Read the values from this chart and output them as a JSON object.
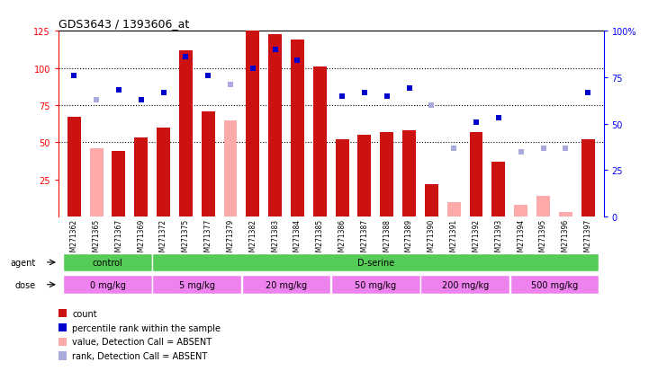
{
  "title": "GDS3643 / 1393606_at",
  "samples": [
    "GSM271362",
    "GSM271365",
    "GSM271367",
    "GSM271369",
    "GSM271372",
    "GSM271375",
    "GSM271377",
    "GSM271379",
    "GSM271382",
    "GSM271383",
    "GSM271384",
    "GSM271385",
    "GSM271386",
    "GSM271387",
    "GSM271388",
    "GSM271389",
    "GSM271390",
    "GSM271391",
    "GSM271392",
    "GSM271393",
    "GSM271394",
    "GSM271395",
    "GSM271396",
    "GSM271397"
  ],
  "count_present": [
    67,
    null,
    44,
    53,
    60,
    112,
    71,
    null,
    125,
    123,
    119,
    101,
    52,
    55,
    57,
    58,
    22,
    null,
    57,
    37,
    null,
    null,
    null,
    52
  ],
  "count_absent": [
    null,
    46,
    null,
    null,
    null,
    null,
    null,
    65,
    null,
    null,
    null,
    null,
    null,
    null,
    null,
    null,
    null,
    10,
    null,
    null,
    8,
    14,
    3,
    null
  ],
  "rank_present": [
    76,
    null,
    68,
    63,
    67,
    86,
    76,
    null,
    80,
    90,
    84,
    null,
    65,
    67,
    65,
    69,
    null,
    null,
    51,
    53,
    null,
    null,
    null,
    67
  ],
  "rank_absent": [
    null,
    63,
    null,
    null,
    null,
    null,
    null,
    71,
    null,
    null,
    null,
    null,
    null,
    null,
    null,
    null,
    60,
    37,
    null,
    null,
    35,
    37,
    37,
    null
  ],
  "ylim_left": [
    0,
    125
  ],
  "yticks_left": [
    25,
    50,
    75,
    100,
    125
  ],
  "ylim_right": [
    0,
    100
  ],
  "yticks_right": [
    0,
    25,
    50,
    75,
    100
  ],
  "bar_color_present": "#cc1111",
  "bar_color_absent": "#ffaaaa",
  "rank_color_present": "#0000cc",
  "rank_color_absent": "#aaaadd",
  "background_color": "#ffffff",
  "green_color": "#55cc55",
  "magenta_color": "#ee82ee",
  "agent_groups": [
    {
      "label": "control",
      "start": 0,
      "end": 4
    },
    {
      "label": "D-serine",
      "start": 4,
      "end": 24
    }
  ],
  "dose_groups": [
    {
      "label": "0 mg/kg",
      "start": 0,
      "end": 4
    },
    {
      "label": "5 mg/kg",
      "start": 4,
      "end": 8
    },
    {
      "label": "20 mg/kg",
      "start": 8,
      "end": 12
    },
    {
      "label": "50 mg/kg",
      "start": 12,
      "end": 16
    },
    {
      "label": "200 mg/kg",
      "start": 16,
      "end": 20
    },
    {
      "label": "500 mg/kg",
      "start": 20,
      "end": 24
    }
  ],
  "legend_items": [
    {
      "color": "#cc1111",
      "label": "count"
    },
    {
      "color": "#0000cc",
      "label": "percentile rank within the sample"
    },
    {
      "color": "#ffaaaa",
      "label": "value, Detection Call = ABSENT"
    },
    {
      "color": "#aaaadd",
      "label": "rank, Detection Call = ABSENT"
    }
  ]
}
